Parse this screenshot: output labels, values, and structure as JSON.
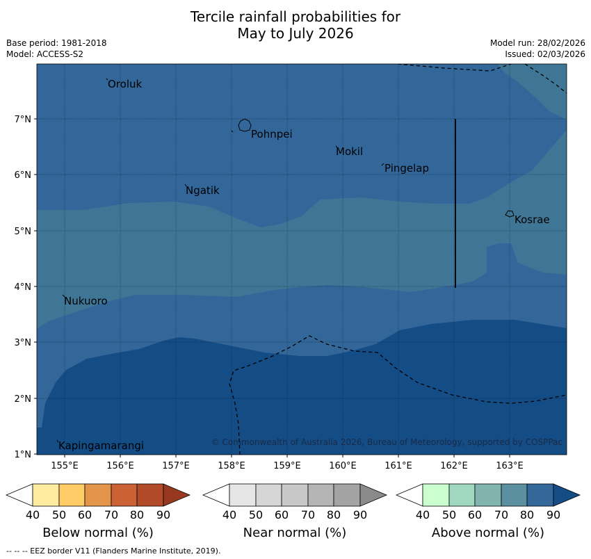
{
  "title": {
    "line1": "Tercile rainfall probabilities for",
    "line2": "May to July 2026"
  },
  "meta": {
    "base_period": "Base period: 1981-2018",
    "model": "Model: ACCESS-S2",
    "model_run": "Model run: 28/02/2026",
    "issued": "Issued: 02/03/2026"
  },
  "map": {
    "lon_ticks": [
      "155°E",
      "156°E",
      "157°E",
      "158°E",
      "159°E",
      "160°E",
      "161°E",
      "162°E",
      "163°E"
    ],
    "lat_ticks": [
      "7°N",
      "6°N",
      "5°N",
      "4°N",
      "3°N",
      "2°N",
      "1°N"
    ],
    "places": {
      "oroluk": "Oroluk",
      "pohnpei": "Pohnpei",
      "mokil": "Mokil",
      "pingelap": "Pingelap",
      "ngatik": "Ngatik",
      "kosrae": "Kosrae",
      "nukuoro": "Nukuoro",
      "kapingamarangi": "Kapingamarangi"
    },
    "copyright": "© Commonwealth of Australia 2026, Bureau of Meteorology, supported by COSPPac",
    "colors": {
      "above_70": "#3f7695",
      "above_80": "#336699",
      "above_90": "#144c86"
    }
  },
  "legend": {
    "below": {
      "title": "Below normal (%)",
      "ticks": [
        "40",
        "50",
        "60",
        "70",
        "80",
        "90"
      ],
      "colors": [
        "#ffffff",
        "#ffeca0",
        "#ffcb66",
        "#e3964a",
        "#cc6135",
        "#b04a28",
        "#983820"
      ]
    },
    "near": {
      "title": "Near normal (%)",
      "ticks": [
        "40",
        "50",
        "60",
        "70",
        "80",
        "90"
      ],
      "colors": [
        "#ffffff",
        "#e6e6e6",
        "#d6d6d6",
        "#c8c8c8",
        "#b5b5b5",
        "#a3a3a3",
        "#8a8a8a"
      ]
    },
    "above": {
      "title": "Above normal (%)",
      "ticks": [
        "40",
        "50",
        "60",
        "70",
        "80",
        "90"
      ],
      "colors": [
        "#ffffff",
        "#ccffd0",
        "#a0d9c0",
        "#82b4ae",
        "#5a909f",
        "#336699",
        "#144c86"
      ]
    }
  },
  "footnote": "--  --  -- EEZ border V11 (Flanders Marine Institute, 2019)."
}
